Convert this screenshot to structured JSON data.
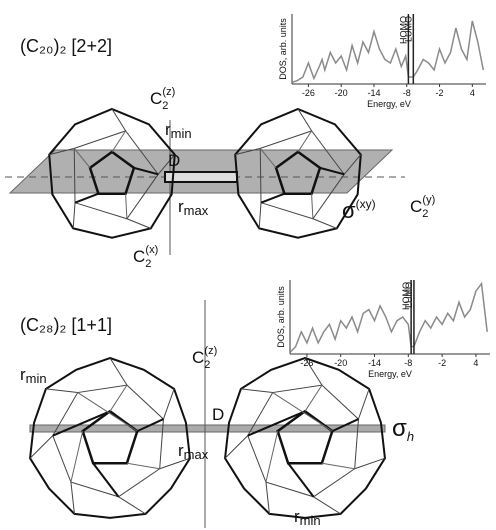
{
  "diagrams": [
    {
      "title": "(C₂₀)₂ [2+2]",
      "axis_z": {
        "base": "C",
        "sub": "2",
        "sup": "(z)"
      },
      "r_min": "r",
      "r_min_sub": "min",
      "bond": "D",
      "r_max": "r",
      "r_max_sub": "max",
      "plane": {
        "base": "σ",
        "sup": "(xy)"
      },
      "axis_y": {
        "base": "C",
        "sub": "2",
        "sup": "(y)"
      },
      "axis_x": {
        "base": "C",
        "sub": "2",
        "sup": "(x)"
      }
    },
    {
      "title": "(C₂₈)₂ [1+1]",
      "axis_z": {
        "base": "C",
        "sub": "2",
        "sup": "(z)"
      },
      "r_min": "r",
      "r_min_sub": "min",
      "bond": "D",
      "r_max": "r",
      "r_max_sub": "max",
      "plane": {
        "base": "σ",
        "sub": "h"
      }
    }
  ],
  "chart_data": [
    {
      "type": "line",
      "ylabel": "DOS, arb. units",
      "xlabel": "Energy, eV",
      "color": "#8a8a8a",
      "x": [
        -29,
        -28,
        -27,
        -26,
        -25,
        -24,
        -23.5,
        -23,
        -22,
        -21,
        -20,
        -19,
        -18,
        -17,
        -16,
        -15,
        -14,
        -13,
        -12,
        -11,
        -10,
        -9,
        -8.2,
        -7.7,
        -6.8,
        -6,
        -5,
        -4,
        -3,
        -2,
        -1,
        0,
        1,
        2,
        3,
        4,
        5,
        6
      ],
      "values": [
        0.02,
        0.05,
        0.1,
        0.3,
        0.08,
        0.25,
        0.35,
        0.2,
        0.45,
        0.3,
        0.4,
        0.2,
        0.55,
        0.3,
        0.6,
        0.45,
        0.75,
        0.5,
        0.35,
        0.3,
        0.5,
        0.25,
        0.4,
        0.1,
        0.1,
        0.2,
        0.35,
        0.3,
        0.2,
        0.5,
        0.3,
        0.45,
        0.8,
        0.5,
        0.35,
        0.9,
        0.6,
        0.2
      ],
      "xlim": [
        -29,
        6.5
      ],
      "ylim": [
        0,
        1
      ],
      "xticks": [
        -26,
        -20,
        -14,
        -8,
        -2,
        4
      ],
      "annotations": [
        {
          "text": "HOMO",
          "x": -7.7
        },
        {
          "text": "LUMO",
          "x": -6.8
        }
      ]
    },
    {
      "type": "line",
      "ylabel": "DOS, arb. units",
      "xlabel": "Energy, eV",
      "color": "#8a8a8a",
      "x": [
        -29,
        -28,
        -27,
        -26,
        -25,
        -24,
        -23,
        -22,
        -21,
        -20,
        -19,
        -18,
        -17,
        -16,
        -15,
        -14,
        -13,
        -12,
        -11,
        -10,
        -9,
        -8,
        -7.5,
        -7,
        -6,
        -5,
        -4,
        -3,
        -2,
        -1,
        0,
        1,
        2,
        3,
        4,
        5,
        6
      ],
      "values": [
        0.02,
        0.1,
        0.3,
        0.15,
        0.35,
        0.15,
        0.3,
        0.4,
        0.2,
        0.45,
        0.35,
        0.5,
        0.3,
        0.55,
        0.6,
        0.45,
        0.65,
        0.5,
        0.3,
        0.45,
        0.5,
        0.4,
        0.1,
        0.1,
        0.3,
        0.45,
        0.35,
        0.5,
        0.4,
        0.55,
        0.45,
        0.7,
        0.5,
        0.6,
        0.85,
        0.95,
        0.3
      ],
      "xlim": [
        -29,
        6.5
      ],
      "ylim": [
        0,
        1
      ],
      "xticks": [
        -26,
        -20,
        -14,
        -8,
        -2,
        4
      ],
      "annotations": [
        {
          "text": "HOMO",
          "x": -7.5
        },
        {
          "text": "LUMO",
          "x": -7
        }
      ]
    }
  ]
}
